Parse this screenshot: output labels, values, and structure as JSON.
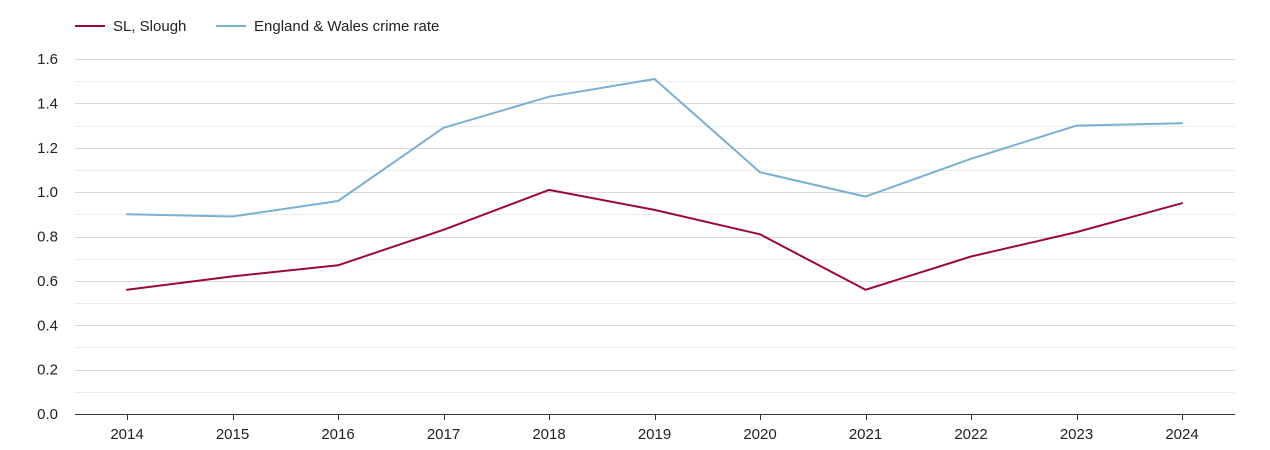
{
  "chart_data": {
    "type": "line",
    "title": "",
    "xlabel": "",
    "ylabel": "",
    "categories": [
      "2014",
      "2015",
      "2016",
      "2017",
      "2018",
      "2019",
      "2020",
      "2021",
      "2022",
      "2023",
      "2024"
    ],
    "ylim": [
      0,
      1.6
    ],
    "yticks": [
      "0.0",
      "0.2",
      "0.4",
      "0.6",
      "0.8",
      "1.0",
      "1.2",
      "1.4",
      "1.6"
    ],
    "grid": true,
    "legend_position": "top-left",
    "series": [
      {
        "name": "SL, Slough",
        "color": "#9b0a33",
        "values": [
          0.56,
          0.62,
          0.67,
          0.83,
          1.01,
          0.92,
          0.81,
          0.56,
          0.71,
          0.82,
          0.95
        ]
      },
      {
        "name": "England & Wales crime rate",
        "color": "#7bb0d3",
        "values": [
          0.9,
          0.89,
          0.96,
          1.29,
          1.43,
          1.51,
          1.09,
          0.98,
          1.15,
          1.3,
          1.31
        ]
      }
    ]
  }
}
